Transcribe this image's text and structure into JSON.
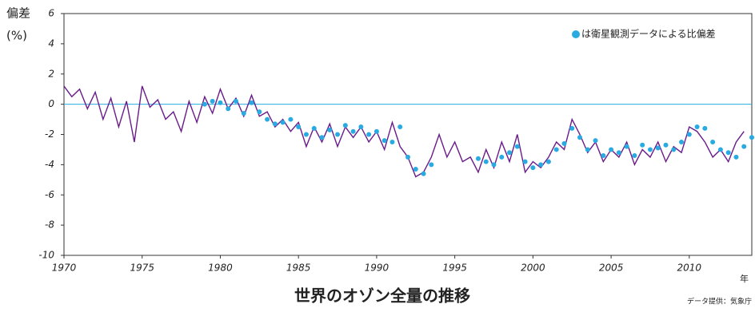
{
  "chart_data": {
    "type": "line",
    "title": "世界のオゾン全量の推移",
    "y_label": [
      "偏差",
      "(%)"
    ],
    "x_unit": "年",
    "source": "データ提供：気象庁",
    "xlim": [
      1970,
      2014
    ],
    "xticks": [
      1970,
      1975,
      1980,
      1985,
      1990,
      1995,
      2000,
      2005,
      2010
    ],
    "ylim": [
      -10,
      6
    ],
    "yticks": [
      -10,
      -8,
      -6,
      -4,
      -2,
      0,
      2,
      4,
      6
    ],
    "zero_line_color": "#29abe2",
    "legend": "upper right",
    "series": [
      {
        "type": "line",
        "color": "#6a1b8a",
        "x": [
          1970,
          1970.5,
          1971,
          1971.5,
          1972,
          1972.5,
          1973,
          1973.5,
          1974,
          1974.5,
          1975,
          1975.5,
          1976,
          1976.5,
          1977,
          1977.5,
          1978,
          1978.5,
          1979,
          1979.5,
          1980,
          1980.5,
          1981,
          1981.5,
          1982,
          1982.5,
          1983,
          1983.5,
          1984,
          1984.5,
          1985,
          1985.5,
          1986,
          1986.5,
          1987,
          1987.5,
          1988,
          1988.5,
          1989,
          1989.5,
          1990,
          1990.5,
          1991,
          1991.5,
          1992,
          1992.5,
          1993,
          1993.5,
          1994,
          1994.5,
          1995,
          1995.5,
          1996,
          1996.5,
          1997,
          1997.5,
          1998,
          1998.5,
          1999,
          1999.5,
          2000,
          2000.5,
          2001,
          2001.5,
          2002,
          2002.5,
          2003,
          2003.5,
          2004,
          2004.5,
          2005,
          2005.5,
          2006,
          2006.5,
          2007,
          2007.5,
          2008,
          2008.5,
          2009,
          2009.5,
          2010,
          2010.5,
          2011,
          2011.5,
          2012,
          2012.5,
          2013,
          2013.5
        ],
        "values": [
          1.2,
          0.5,
          1.0,
          -0.3,
          0.8,
          -1.0,
          0.4,
          -1.5,
          0.2,
          -2.5,
          1.2,
          -0.2,
          0.3,
          -1.0,
          -0.5,
          -1.8,
          0.2,
          -1.2,
          0.5,
          -0.6,
          1.0,
          -0.3,
          0.4,
          -0.8,
          0.6,
          -0.8,
          -0.5,
          -1.5,
          -1.0,
          -1.8,
          -1.2,
          -2.8,
          -1.5,
          -2.5,
          -1.3,
          -2.8,
          -1.5,
          -2.2,
          -1.5,
          -2.5,
          -1.8,
          -3.0,
          -1.2,
          -2.8,
          -3.5,
          -4.8,
          -4.5,
          -3.5,
          -2.0,
          -3.5,
          -2.5,
          -3.8,
          -3.5,
          -4.5,
          -3.0,
          -4.2,
          -2.5,
          -3.8,
          -2.0,
          -4.5,
          -3.8,
          -4.2,
          -3.5,
          -2.5,
          -3.0,
          -1.0,
          -2.0,
          -3.2,
          -2.5,
          -3.8,
          -3.0,
          -3.5,
          -2.5,
          -4.0,
          -3.0,
          -3.5,
          -2.5,
          -3.8,
          -2.8,
          -3.2,
          -1.5,
          -1.8,
          -2.5,
          -3.5,
          -3.0,
          -3.8,
          -2.5,
          -1.8
        ]
      },
      {
        "type": "scatter",
        "name": "は衛星観測データによる比偏差",
        "color": "#29abe2",
        "x": [
          1979,
          1979.5,
          1980,
          1980.5,
          1981,
          1981.5,
          1982,
          1982.5,
          1983,
          1983.5,
          1984,
          1984.5,
          1985,
          1985.5,
          1986,
          1986.5,
          1987,
          1987.5,
          1988,
          1988.5,
          1989,
          1989.5,
          1990,
          1990.5,
          1991,
          1991.5,
          1992,
          1992.5,
          1993,
          1993.5,
          1994,
          1994.5,
          1995,
          1995.5,
          1996,
          1996.5,
          1997,
          1997.5,
          1998,
          1998.5,
          1999,
          1999.5,
          2000,
          2000.5,
          2001,
          2001.5,
          2002,
          2002.5,
          2003,
          2003.5,
          2004,
          2004.5,
          2005,
          2005.5,
          2006,
          2006.5,
          2007,
          2007.5,
          2008,
          2008.5,
          2009,
          2009.5,
          2010,
          2010.5,
          2011,
          2011.5,
          2012,
          2012.5,
          2013,
          2013.5,
          2014
        ],
        "values": [
          0.0,
          0.2,
          0.1,
          -0.3,
          0.2,
          -0.6,
          0.1,
          -0.5,
          -1.0,
          -1.3,
          -1.2,
          -1.0,
          -1.5,
          -2.0,
          -1.6,
          -2.2,
          -1.7,
          -2.0,
          -1.4,
          -1.8,
          -1.5,
          -2.0,
          -1.8,
          -2.4,
          -2.5,
          -1.5,
          -3.5,
          -4.3,
          -4.6,
          -4.0,
          null,
          null,
          null,
          null,
          null,
          -3.6,
          -3.8,
          -4.0,
          -3.5,
          -3.2,
          -2.8,
          -3.8,
          -4.2,
          -4.0,
          -3.8,
          -3.0,
          -2.6,
          -1.6,
          -2.2,
          -3.0,
          -2.4,
          -3.4,
          -3.0,
          -3.2,
          -2.8,
          -3.4,
          -2.7,
          -3.0,
          -2.9,
          -2.7,
          -3.0,
          -2.5,
          -2.0,
          -1.5,
          -1.6,
          -2.5,
          -3.0,
          -3.2,
          -3.5,
          -2.8,
          -2.2
        ]
      }
    ]
  }
}
